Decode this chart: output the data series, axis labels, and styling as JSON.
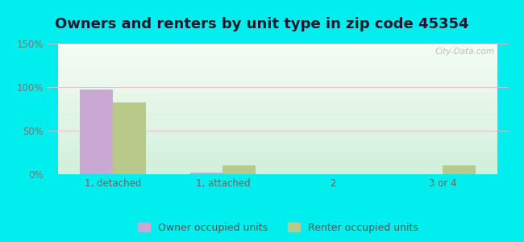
{
  "title": "Owners and renters by unit type in zip code 45354",
  "categories": [
    "1, detached",
    "1, attached",
    "2",
    "3 or 4"
  ],
  "owner_values": [
    97,
    2,
    0,
    0
  ],
  "renter_values": [
    82,
    10,
    0,
    10
  ],
  "owner_color": "#c9a8d4",
  "renter_color": "#b8c98a",
  "ylim": [
    0,
    150
  ],
  "yticks": [
    0,
    50,
    100,
    150
  ],
  "ytick_labels": [
    "0%",
    "50%",
    "100%",
    "150%"
  ],
  "outer_bg": "#00eeee",
  "bar_width": 0.3,
  "legend_labels": [
    "Owner occupied units",
    "Renter occupied units"
  ],
  "watermark": "City-Data.com",
  "title_fontsize": 13,
  "axis_fontsize": 8.5,
  "legend_fontsize": 9
}
